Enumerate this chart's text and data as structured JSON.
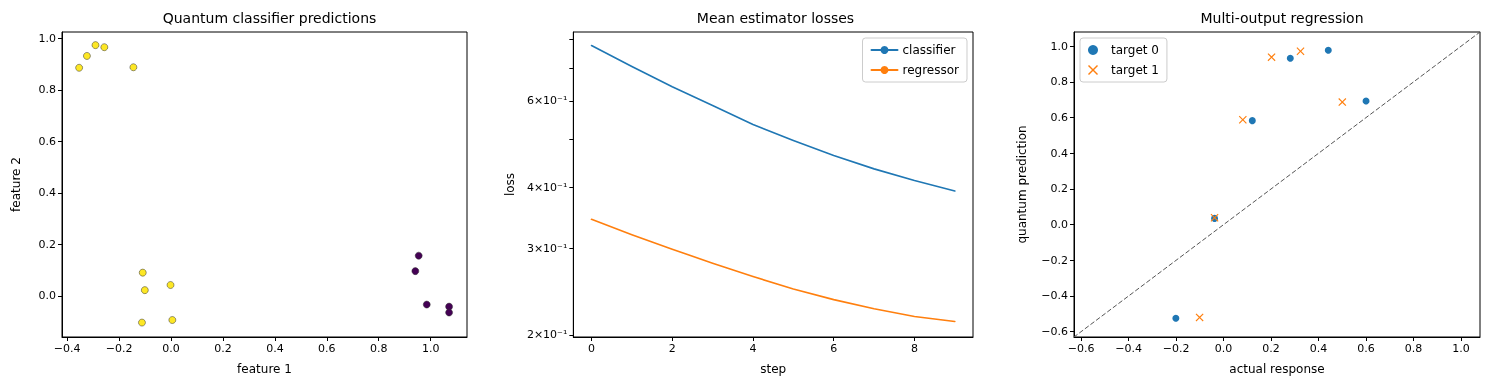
{
  "chart_data": [
    {
      "type": "scatter",
      "title": "Quantum classifier predictions",
      "xlabel": "feature 1",
      "ylabel": "feature 2",
      "marker": "circle",
      "legend": false,
      "grid": false,
      "xlim": [
        -0.42,
        1.14
      ],
      "ylim": [
        -0.16,
        1.025
      ],
      "xticks": [
        {
          "value": -0.4,
          "label": "−0.4"
        },
        {
          "value": -0.2,
          "label": "−0.2"
        },
        {
          "value": 0,
          "label": "0.0"
        },
        {
          "value": 0.2,
          "label": "0.2"
        },
        {
          "value": 0.4,
          "label": "0.4"
        },
        {
          "value": 0.6,
          "label": "0.6"
        },
        {
          "value": 0.8,
          "label": "0.8"
        },
        {
          "value": 1,
          "label": "1.0"
        }
      ],
      "yticks": [
        {
          "value": 0,
          "label": "0.0"
        },
        {
          "value": 0.2,
          "label": "0.2"
        },
        {
          "value": 0.4,
          "label": "0.4"
        },
        {
          "value": 0.6,
          "label": "0.6"
        },
        {
          "value": 0.8,
          "label": "0.8"
        },
        {
          "value": 1,
          "label": "1.0"
        }
      ],
      "series": [
        {
          "color": "#fde725",
          "x": [
            -0.354,
            -0.324,
            -0.291,
            -0.257,
            -0.145,
            -0.109,
            -0.101,
            -0.002,
            -0.112,
            0.005
          ],
          "values": [
            0.886,
            0.932,
            0.974,
            0.966,
            0.888,
            0.09,
            0.022,
            0.042,
            -0.104,
            -0.094
          ]
        },
        {
          "color": "#440154",
          "x": [
            0.954,
            0.941,
            0.985,
            1.071,
            1.071
          ],
          "values": [
            0.156,
            0.096,
            -0.034,
            -0.042,
            -0.065
          ]
        }
      ]
    },
    {
      "type": "line",
      "title": "Mean estimator losses",
      "xlabel": "step",
      "ylabel": "loss",
      "log": "y",
      "legend": "top right",
      "grid": false,
      "marker": "none",
      "line_style": "solid",
      "x": [
        0,
        1,
        2,
        3,
        4,
        5,
        6,
        7,
        8,
        9
      ],
      "xlim": [
        -0.45,
        9.45
      ],
      "ylim": [
        0.198,
        0.829
      ],
      "xticks": [
        0,
        2,
        4,
        6,
        8
      ],
      "yticks": [
        {
          "value": 0.2,
          "label": "2×10⁻¹"
        },
        {
          "value": 0.3,
          "label": "3×10⁻¹"
        },
        {
          "value": 0.4,
          "label": "4×10⁻¹"
        },
        {
          "value": 0.5,
          "label": null
        },
        {
          "value": 0.6,
          "label": "6×10⁻¹"
        },
        {
          "value": 0.7,
          "label": null
        },
        {
          "value": 0.8,
          "label": null
        }
      ],
      "series": [
        {
          "name": "classifier",
          "color": "#1f77b4",
          "values": [
            0.778,
            0.705,
            0.641,
            0.587,
            0.537,
            0.498,
            0.464,
            0.436,
            0.413,
            0.393
          ]
        },
        {
          "name": "regressor",
          "color": "#ff7f0e",
          "values": [
            0.344,
            0.32,
            0.299,
            0.28,
            0.263,
            0.248,
            0.236,
            0.226,
            0.218,
            0.213
          ]
        }
      ]
    },
    {
      "type": "scatter",
      "title": "Multi-output regression",
      "xlabel": "actual response",
      "ylabel": "quantum prediction",
      "legend": "top left",
      "grid": false,
      "xlim": [
        -0.63,
        1.08
      ],
      "ylim": [
        -0.63,
        1.08
      ],
      "xticks": [
        {
          "value": -0.6,
          "label": "−0.6"
        },
        {
          "value": -0.4,
          "label": "−0.4"
        },
        {
          "value": -0.2,
          "label": "−0.2"
        },
        {
          "value": 0,
          "label": "0.0"
        },
        {
          "value": 0.2,
          "label": "0.2"
        },
        {
          "value": 0.4,
          "label": "0.4"
        },
        {
          "value": 0.6,
          "label": "0.6"
        },
        {
          "value": 0.8,
          "label": "0.8"
        },
        {
          "value": 1,
          "label": "1.0"
        }
      ],
      "yticks": [
        {
          "value": -0.6,
          "label": "−0.6"
        },
        {
          "value": -0.4,
          "label": "−0.4"
        },
        {
          "value": -0.2,
          "label": "−0.2"
        },
        {
          "value": 0,
          "label": "0.0"
        },
        {
          "value": 0.2,
          "label": "0.2"
        },
        {
          "value": 0.4,
          "label": "0.4"
        },
        {
          "value": 0.6,
          "label": "0.6"
        },
        {
          "value": 0.8,
          "label": "0.8"
        },
        {
          "value": 1,
          "label": "1.0"
        }
      ],
      "series": [
        {
          "name": "target 0",
          "color": "#1f77b4",
          "marker": "circle",
          "x": [
            -0.201,
            -0.038,
            0.121,
            0.281,
            0.441,
            0.6
          ],
          "values": [
            -0.525,
            0.035,
            0.583,
            0.933,
            0.978,
            0.693
          ]
        },
        {
          "name": "target 1",
          "color": "#ff7f0e",
          "marker": "cross",
          "x": [
            -0.101,
            -0.038,
            0.081,
            0.202,
            0.324,
            0.5
          ],
          "values": [
            -0.52,
            0.039,
            0.588,
            0.939,
            0.972,
            0.687
          ]
        },
        {
          "type": "line",
          "color": "#555555",
          "line_style": "dashed",
          "marker": "none",
          "x": [
            -0.63,
            1.08
          ],
          "values": [
            -0.63,
            1.08
          ]
        }
      ]
    }
  ]
}
